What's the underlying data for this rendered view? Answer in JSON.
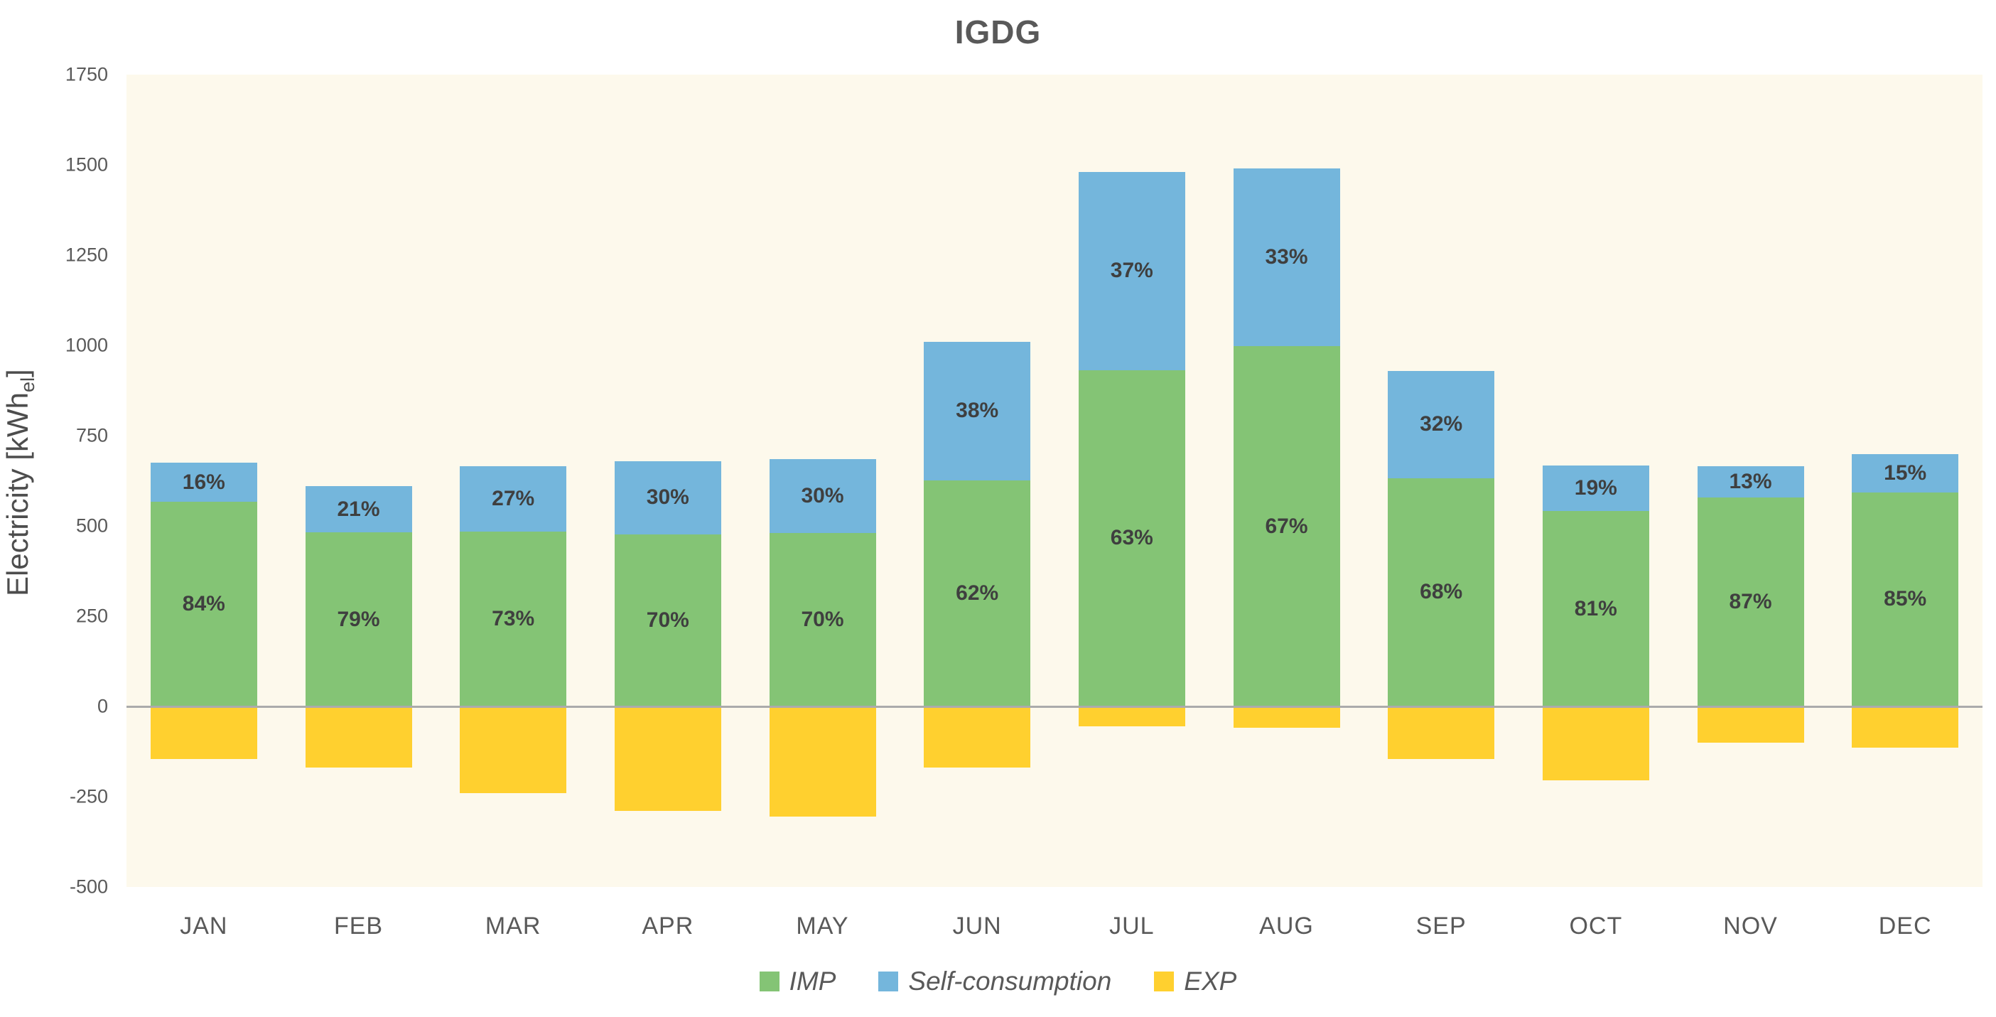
{
  "title": "IGDG",
  "y_axis": {
    "label_main": "Electricity [kWh",
    "label_sub": "el",
    "label_close": "]",
    "tick_labels": [
      "1750",
      "1500",
      "1250",
      "1000",
      "750",
      "500",
      "250",
      "0",
      "-250",
      "-500"
    ]
  },
  "chart_data": {
    "type": "bar",
    "stacked": true,
    "title": "IGDG",
    "ylabel": "Electricity [kWh_el]",
    "xlabel": "",
    "ylim": [
      -500,
      1750
    ],
    "y_tick_step": 250,
    "grid": false,
    "legend_position": "bottom",
    "plot_bg_color": "#FDF9EC",
    "zero_line_color": "#ABABAB",
    "label_color": "#3F3F3F",
    "axis_text_color": "#595959",
    "categories": [
      "JAN",
      "FEB",
      "MAR",
      "APR",
      "MAY",
      "JUN",
      "JUL",
      "AUG",
      "SEP",
      "OCT",
      "NOV",
      "DEC"
    ],
    "series": [
      {
        "name": "IMP",
        "color": "#84C475",
        "values": [
          567,
          482,
          485,
          476,
          480,
          626,
          932,
          998,
          632,
          541,
          579,
          593
        ],
        "segment_labels": [
          "84%",
          "79%",
          "73%",
          "70%",
          "70%",
          "62%",
          "63%",
          "67%",
          "68%",
          "81%",
          "87%",
          "85%"
        ]
      },
      {
        "name": "Self-consumption",
        "color": "#74B6DC",
        "values": [
          108,
          128,
          180,
          204,
          205,
          384,
          548,
          492,
          298,
          127,
          86,
          105
        ],
        "segment_labels": [
          "16%",
          "21%",
          "27%",
          "30%",
          "30%",
          "38%",
          "37%",
          "33%",
          "32%",
          "19%",
          "13%",
          "15%"
        ]
      },
      {
        "name": "EXP",
        "color": "#FFD02F",
        "values": [
          -145,
          -170,
          -240,
          -290,
          -305,
          -170,
          -55,
          -60,
          -145,
          -205,
          -100,
          -115
        ],
        "segment_labels": null
      }
    ]
  }
}
